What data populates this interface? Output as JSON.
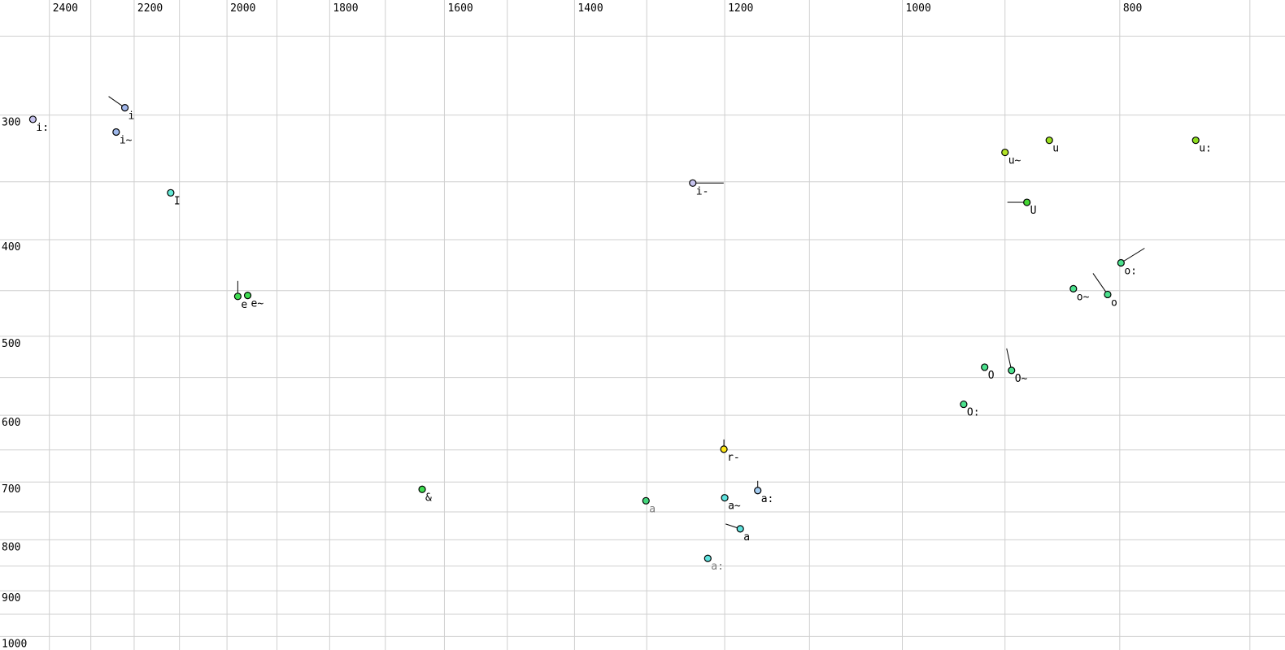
{
  "chart_data": {
    "type": "scatter",
    "title": "",
    "xlabel": "",
    "ylabel": "",
    "legend": false,
    "grid": true,
    "x_axis": {
      "unit": "Hz",
      "orientation": "top",
      "reversed": true,
      "scale": "log",
      "tick_labels": [
        "2400",
        "2200",
        "2000",
        "1800",
        "1600",
        "1400",
        "1200",
        "1000",
        "800"
      ],
      "tick_values": [
        2400,
        2200,
        2000,
        1800,
        1600,
        1400,
        1200,
        1000,
        800
      ],
      "gridline_values": [
        2400,
        2300,
        2200,
        2100,
        2000,
        1900,
        1800,
        1700,
        1600,
        1500,
        1400,
        1300,
        1200,
        1100,
        1000,
        900,
        800,
        700
      ],
      "range": [
        2524,
        674
      ]
    },
    "y_axis": {
      "unit": "Hz",
      "orientation": "left",
      "reversed": true,
      "scale": "log",
      "tick_labels": [
        "300",
        "400",
        "500",
        "600",
        "700",
        "800",
        "900",
        "1000"
      ],
      "tick_values": [
        300,
        400,
        500,
        600,
        700,
        800,
        900,
        1000
      ],
      "gridline_values": [
        250,
        300,
        350,
        400,
        450,
        500,
        550,
        600,
        650,
        700,
        750,
        800,
        850,
        900,
        950,
        1000
      ],
      "range": [
        230,
        1032
      ]
    },
    "points": [
      {
        "label": "i",
        "f2": 2221,
        "f1": 295,
        "color": "#a3b8ec",
        "label_color": "#000000",
        "tail": [
          -20,
          -14
        ]
      },
      {
        "label": "i:",
        "f2": 2441,
        "f1": 303,
        "color": "#c6c3ee",
        "label_color": "#000000",
        "tail": null
      },
      {
        "label": "i~",
        "f2": 2241,
        "f1": 312,
        "color": "#9db7ea",
        "label_color": "#000000",
        "tail": null
      },
      {
        "label": "I",
        "f2": 2119,
        "f1": 359,
        "color": "#63e9d5",
        "label_color": "#000000",
        "tail": null
      },
      {
        "label": "i-",
        "f2": 1240,
        "f1": 351,
        "color": "#c6c3ee",
        "label_color": "#000000",
        "tail": [
          38,
          0
        ]
      },
      {
        "label": "e",
        "f2": 1978,
        "f1": 456,
        "color": "#3fdc51",
        "label_color": "#000000",
        "tail": [
          0,
          -19
        ]
      },
      {
        "label": "e~",
        "f2": 1958,
        "f1": 455,
        "color": "#3fdc51",
        "label_color": "#000000",
        "tail": null
      },
      {
        "label": "&",
        "f2": 1637,
        "f1": 712,
        "color": "#3fdc51",
        "label_color": "#000000",
        "tail": null
      },
      {
        "label": "u~",
        "f2": 900,
        "f1": 327,
        "color": "#b2e326",
        "label_color": "#000000",
        "tail": null
      },
      {
        "label": "u",
        "f2": 860,
        "f1": 318,
        "color": "#9bdf1f",
        "label_color": "#000000",
        "tail": null
      },
      {
        "label": "u:",
        "f2": 740,
        "f1": 318,
        "color": "#8cdc1e",
        "label_color": "#000000",
        "tail": null
      },
      {
        "label": "U",
        "f2": 880,
        "f1": 367,
        "color": "#44d633",
        "label_color": "#000000",
        "tail": [
          -24,
          0
        ]
      },
      {
        "label": "o:",
        "f2": 799,
        "f1": 422,
        "color": "#4be18d",
        "label_color": "#000000",
        "tail": [
          29,
          -18
        ]
      },
      {
        "label": "o~",
        "f2": 839,
        "f1": 448,
        "color": "#4be18d",
        "label_color": "#000000",
        "tail": null
      },
      {
        "label": "o",
        "f2": 810,
        "f1": 454,
        "color": "#4be18d",
        "label_color": "#000000",
        "tail": [
          -18,
          -26
        ]
      },
      {
        "label": "O",
        "f2": 919,
        "f1": 537,
        "color": "#4be18d",
        "label_color": "#000000",
        "tail": null
      },
      {
        "label": "O~",
        "f2": 894,
        "f1": 541,
        "color": "#4be18d",
        "label_color": "#000000",
        "tail": [
          -6,
          -27
        ]
      },
      {
        "label": "O:",
        "f2": 939,
        "f1": 585,
        "color": "#4be18d",
        "label_color": "#000000",
        "tail": null
      },
      {
        "label": "r-",
        "f2": 1201,
        "f1": 649,
        "color": "#ffe81a",
        "label_color": "#000000",
        "tail": [
          0,
          -12
        ]
      },
      {
        "label": "a:",
        "f2": 1160,
        "f1": 714,
        "color": "#a5cdf2",
        "label_color": "#000000",
        "tail": [
          0,
          -12
        ]
      },
      {
        "label": "a~",
        "f2": 1200,
        "f1": 726,
        "color": "#5fe3df",
        "label_color": "#000000",
        "tail": null
      },
      {
        "label": "a",
        "f2": 1301,
        "f1": 731,
        "color": "#43d57b",
        "label_color": "#7a7a7a",
        "tail": null
      },
      {
        "label": "a",
        "f2": 1181,
        "f1": 780,
        "color": "#5fe3df",
        "label_color": "#000000",
        "tail": [
          -18,
          -6
        ]
      },
      {
        "label": "a:",
        "f2": 1221,
        "f1": 835,
        "color": "#5fe3df",
        "label_color": "#7a7a7a",
        "tail": null
      }
    ]
  },
  "colors": {
    "background": "#ffffff",
    "grid": "#cfcfcf",
    "tick_text": "#000000",
    "point_stroke": "#000000",
    "tail_line": "#000000"
  }
}
